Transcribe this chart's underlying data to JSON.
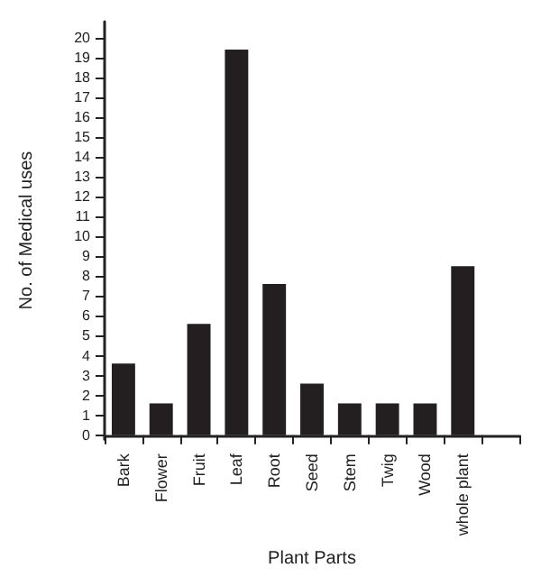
{
  "chart_data": {
    "type": "bar",
    "xlabel": "Plant Parts",
    "ylabel": "No. of Medical uses",
    "categories": [
      "Bark",
      "Flower",
      "Fruit",
      "Leaf",
      "Root",
      "Seed",
      "Stem",
      "Twig",
      "Wood",
      "whole plant",
      null
    ],
    "series": [
      {
        "color": "#231f20",
        "values": [
          3.6,
          1.6,
          5.6,
          19.4,
          7.6,
          2.6,
          1.6,
          1.6,
          1.6,
          8.5,
          null
        ]
      }
    ],
    "ylim": [
      -0.2,
      20.8
    ],
    "yticks": [
      0,
      1,
      2,
      3,
      4,
      5,
      6,
      7,
      8,
      9,
      10,
      11,
      12,
      13,
      14,
      15,
      16,
      17,
      18,
      19,
      20
    ],
    "grid": false
  }
}
